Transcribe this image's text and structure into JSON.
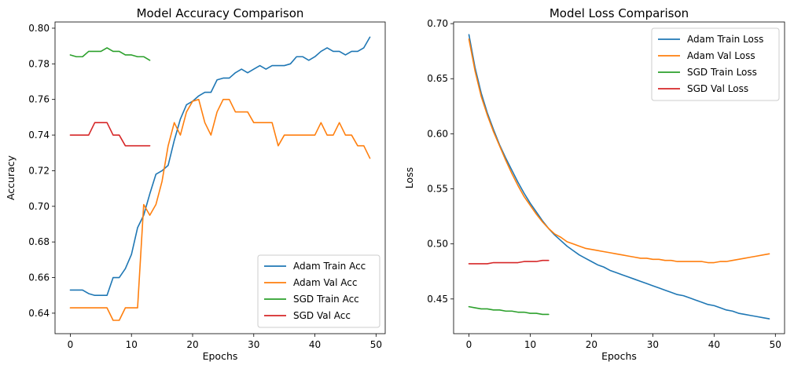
{
  "chart_data": [
    {
      "type": "line",
      "title": "Model Accuracy Comparison",
      "xlabel": "Epochs",
      "ylabel": "Accuracy",
      "xlim": [
        -2.5,
        51.5
      ],
      "ylim": [
        0.6285,
        0.8035
      ],
      "xticks": [
        0,
        10,
        20,
        30,
        40,
        50
      ],
      "yticks": [
        0.64,
        0.66,
        0.68,
        0.7,
        0.72,
        0.74,
        0.76,
        0.78,
        0.8
      ],
      "ytick_labels": [
        "0.64",
        "0.66",
        "0.68",
        "0.70",
        "0.72",
        "0.74",
        "0.76",
        "0.78",
        "0.80"
      ],
      "legend": "lower-right",
      "series": [
        {
          "name": "Adam Train Acc",
          "color": "#1f77b4",
          "values": [
            0.653,
            0.653,
            0.653,
            0.651,
            0.65,
            0.65,
            0.65,
            0.66,
            0.66,
            0.665,
            0.673,
            0.688,
            0.695,
            0.707,
            0.718,
            0.72,
            0.723,
            0.737,
            0.749,
            0.757,
            0.759,
            0.762,
            0.764,
            0.764,
            0.771,
            0.772,
            0.772,
            0.775,
            0.777,
            0.775,
            0.777,
            0.779,
            0.777,
            0.779,
            0.779,
            0.779,
            0.78,
            0.784,
            0.784,
            0.782,
            0.784,
            0.787,
            0.789,
            0.787,
            0.787,
            0.785,
            0.787,
            0.787,
            0.789,
            0.795
          ]
        },
        {
          "name": "Adam Val Acc",
          "color": "#ff7f0e",
          "values": [
            0.643,
            0.643,
            0.643,
            0.643,
            0.643,
            0.643,
            0.643,
            0.636,
            0.636,
            0.643,
            0.643,
            0.643,
            0.701,
            0.695,
            0.701,
            0.714,
            0.734,
            0.747,
            0.74,
            0.753,
            0.759,
            0.76,
            0.747,
            0.74,
            0.753,
            0.76,
            0.76,
            0.753,
            0.753,
            0.753,
            0.747,
            0.747,
            0.747,
            0.747,
            0.734,
            0.74,
            0.74,
            0.74,
            0.74,
            0.74,
            0.74,
            0.747,
            0.74,
            0.74,
            0.747,
            0.74,
            0.74,
            0.734,
            0.734,
            0.727
          ]
        },
        {
          "name": "SGD Train Acc",
          "color": "#2ca02c",
          "values": [
            0.785,
            0.784,
            0.784,
            0.787,
            0.787,
            0.787,
            0.789,
            0.787,
            0.787,
            0.785,
            0.785,
            0.784,
            0.784,
            0.782
          ]
        },
        {
          "name": "SGD Val Acc",
          "color": "#d62728",
          "values": [
            0.74,
            0.74,
            0.74,
            0.74,
            0.747,
            0.747,
            0.747,
            0.74,
            0.74,
            0.734,
            0.734,
            0.734,
            0.734,
            0.734
          ]
        }
      ]
    },
    {
      "type": "line",
      "title": "Model Loss Comparison",
      "xlabel": "Epochs",
      "ylabel": "Loss",
      "xlim": [
        -2.5,
        51.5
      ],
      "ylim": [
        0.4185,
        0.7015
      ],
      "xticks": [
        0,
        10,
        20,
        30,
        40,
        50
      ],
      "yticks": [
        0.45,
        0.5,
        0.55,
        0.6,
        0.65,
        0.7
      ],
      "ytick_labels": [
        "0.45",
        "0.50",
        "0.55",
        "0.60",
        "0.65",
        "0.70"
      ],
      "legend": "upper-right",
      "series": [
        {
          "name": "Adam Train Loss",
          "color": "#1f77b4",
          "values": [
            0.69,
            0.66,
            0.637,
            0.619,
            0.604,
            0.59,
            0.578,
            0.567,
            0.556,
            0.546,
            0.537,
            0.529,
            0.521,
            0.514,
            0.508,
            0.503,
            0.498,
            0.494,
            0.49,
            0.487,
            0.484,
            0.481,
            0.479,
            0.476,
            0.474,
            0.472,
            0.47,
            0.468,
            0.466,
            0.464,
            0.462,
            0.46,
            0.458,
            0.456,
            0.454,
            0.453,
            0.451,
            0.449,
            0.447,
            0.445,
            0.444,
            0.442,
            0.44,
            0.439,
            0.437,
            0.436,
            0.435,
            0.434,
            0.433,
            0.432
          ]
        },
        {
          "name": "Adam Val Loss",
          "color": "#ff7f0e",
          "values": [
            0.686,
            0.657,
            0.634,
            0.617,
            0.602,
            0.589,
            0.576,
            0.564,
            0.553,
            0.543,
            0.535,
            0.527,
            0.52,
            0.514,
            0.509,
            0.506,
            0.502,
            0.5,
            0.498,
            0.496,
            0.495,
            0.494,
            0.493,
            0.492,
            0.491,
            0.49,
            0.489,
            0.488,
            0.487,
            0.487,
            0.486,
            0.486,
            0.485,
            0.485,
            0.484,
            0.484,
            0.484,
            0.484,
            0.484,
            0.483,
            0.483,
            0.484,
            0.484,
            0.485,
            0.486,
            0.487,
            0.488,
            0.489,
            0.49,
            0.491
          ]
        },
        {
          "name": "SGD Train Loss",
          "color": "#2ca02c",
          "values": [
            0.443,
            0.442,
            0.441,
            0.441,
            0.44,
            0.44,
            0.439,
            0.439,
            0.438,
            0.438,
            0.437,
            0.437,
            0.436,
            0.436
          ]
        },
        {
          "name": "SGD Val Loss",
          "color": "#d62728",
          "values": [
            0.482,
            0.482,
            0.482,
            0.482,
            0.483,
            0.483,
            0.483,
            0.483,
            0.483,
            0.484,
            0.484,
            0.484,
            0.485,
            0.485
          ]
        }
      ]
    }
  ]
}
